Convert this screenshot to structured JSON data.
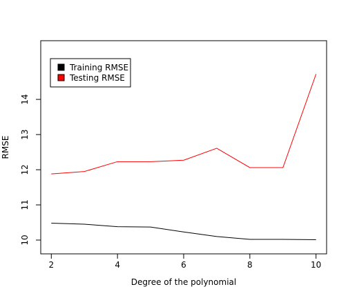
{
  "chart_data": {
    "type": "line",
    "title": "",
    "xlabel": "Degree of the polynomial",
    "ylabel": "RMSE",
    "x": [
      2,
      3,
      4,
      5,
      6,
      7,
      8,
      9,
      10
    ],
    "xlim": [
      2,
      10
    ],
    "ylim": [
      10,
      14.6
    ],
    "xticks": [
      2,
      4,
      6,
      8,
      10
    ],
    "yticks": [
      10,
      11,
      12,
      13,
      14
    ],
    "grid": false,
    "legend_position": "top-left",
    "series": [
      {
        "name": "Training RMSE",
        "color": "#000000",
        "values": [
          10.48,
          10.45,
          10.38,
          10.37,
          10.23,
          10.1,
          10.02,
          10.02,
          10.01
        ]
      },
      {
        "name": "Testing RMSE",
        "color": "#ff0000",
        "values": [
          11.88,
          11.95,
          12.23,
          12.23,
          12.27,
          12.61,
          12.06,
          12.06,
          14.72
        ]
      }
    ]
  }
}
